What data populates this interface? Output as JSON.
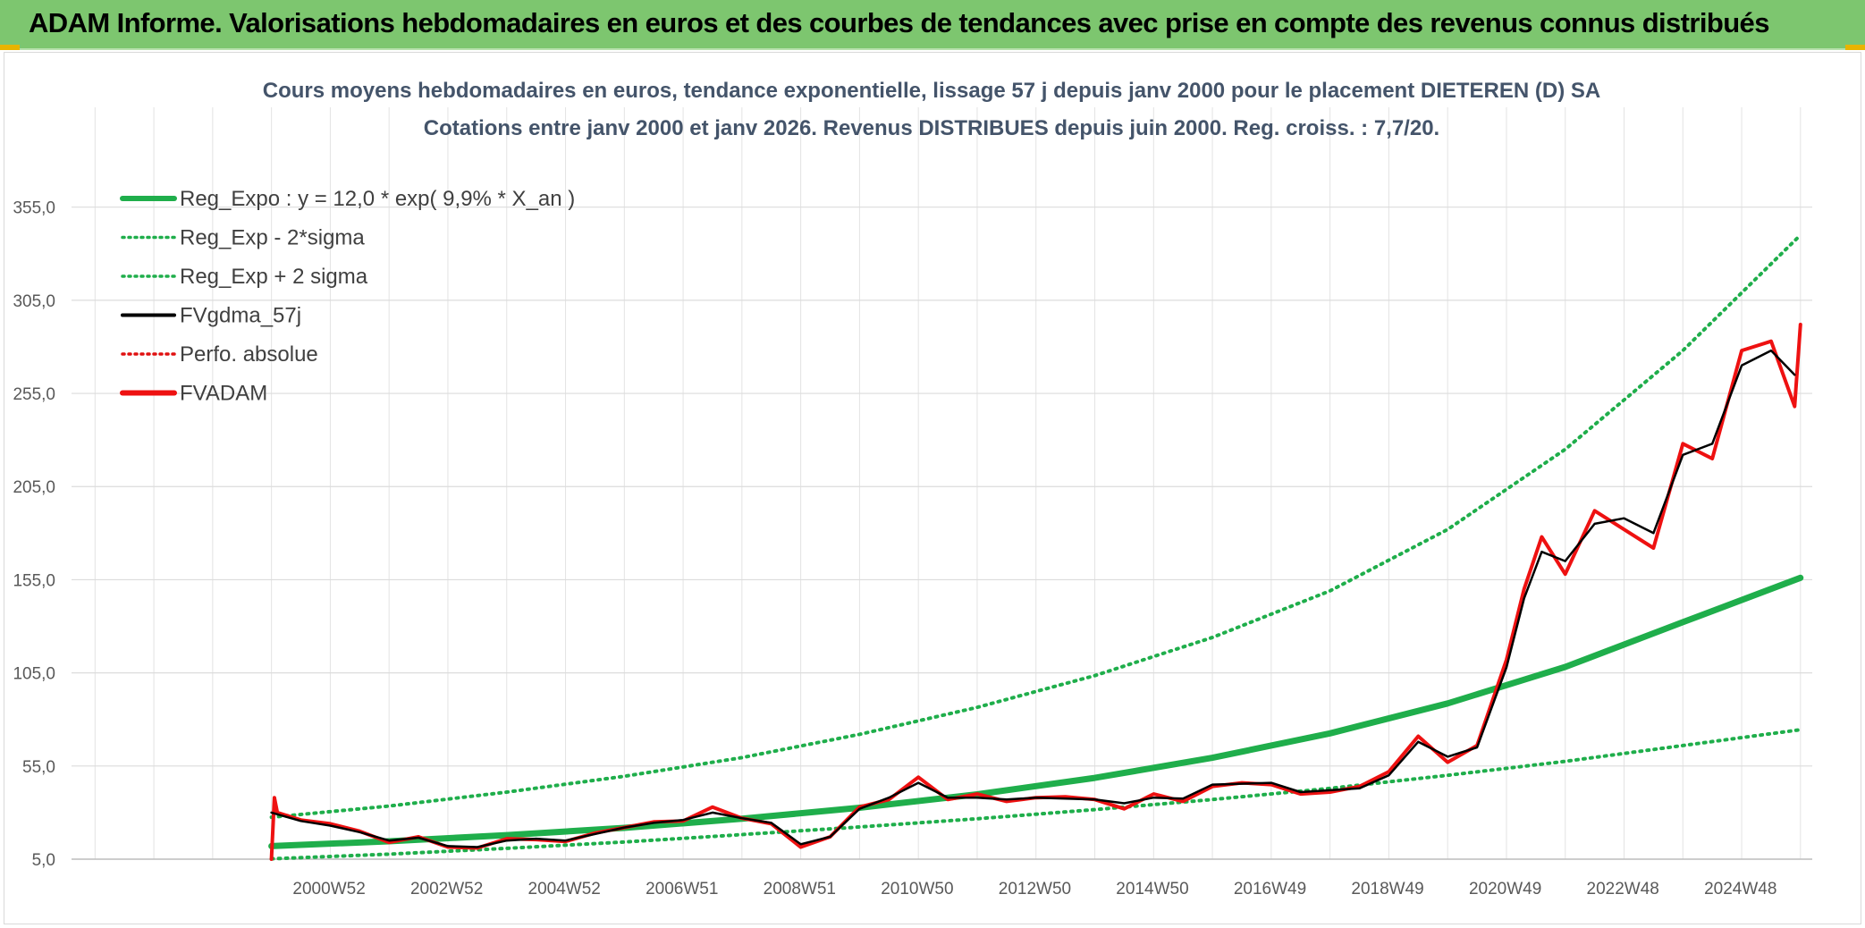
{
  "banner": {
    "title": "ADAM Informe. Valorisations hebdomadaires en euros et des courbes de tendances avec prise en compte des revenus connus distribués",
    "color": "#7dc66f"
  },
  "chart_data": {
    "type": "line",
    "title": "Cours moyens hebdomadaires en euros, tendance exponentielle, lissage 57 j depuis janv 2000 pour le placement DIETEREN (D) SA",
    "subtitle": "Cotations entre janv 2000 et janv 2026. Revenus DISTRIBUES depuis juin 2000. Reg. croiss. : 7,7/20.",
    "ylim": [
      5,
      375
    ],
    "xlim": [
      1996.6,
      2026.2
    ],
    "y_ticks": [
      "355,0",
      "305,0",
      "255,0",
      "205,0",
      "155,0",
      "105,0",
      "55,0",
      "5,0"
    ],
    "y_tick_values": [
      355,
      305,
      255,
      205,
      155,
      105,
      55,
      5
    ],
    "x_ticks": [
      "2000W52",
      "2002W52",
      "2004W52",
      "2006W51",
      "2008W51",
      "2010W50",
      "2012W50",
      "2014W50",
      "2016W49",
      "2018W49",
      "2020W49",
      "2022W48",
      "2024W48"
    ],
    "x_tick_years": [
      2000.98,
      2002.98,
      2004.98,
      2006.98,
      2008.98,
      2010.98,
      2012.98,
      2014.98,
      2016.98,
      2018.98,
      2020.98,
      2022.98,
      2024.98
    ],
    "legend": [
      {
        "label": "Reg_Expo : y = 12,0 * exp( 9,9% *  X_an )",
        "color": "#1fae4b",
        "style": "solid-thick"
      },
      {
        "label": "Reg_Exp - 2*sigma",
        "color": "#1fae4b",
        "style": "dotted"
      },
      {
        "label": "Reg_Exp + 2 sigma",
        "color": "#1fae4b",
        "style": "dotted"
      },
      {
        "label": "FVgdma_57j",
        "color": "#000000",
        "style": "solid"
      },
      {
        "label": "Perfo. absolue",
        "color": "#e01010",
        "style": "dotted"
      },
      {
        "label": "FVADAM",
        "color": "#ee1111",
        "style": "solid-thick"
      }
    ],
    "series": [
      {
        "name": "Reg_Expo",
        "color": "#1fae4b",
        "x": [
          2000.0,
          2002.0,
          2004.0,
          2006.0,
          2008.0,
          2010.0,
          2012.0,
          2014.0,
          2016.0,
          2018.0,
          2020.0,
          2022.0,
          2024.0,
          2026.0
        ],
        "y": [
          12.0,
          14.6,
          17.9,
          21.8,
          26.7,
          32.6,
          39.8,
          48.6,
          59.4,
          72.5,
          88.6,
          108.2,
          132.2,
          156.0
        ]
      },
      {
        "name": "Reg_Exp - 2*sigma",
        "color": "#1fae4b",
        "x": [
          2000.0,
          2002.0,
          2004.0,
          2006.0,
          2008.0,
          2010.0,
          2012.0,
          2014.0,
          2016.0,
          2018.0,
          2020.0,
          2022.0,
          2024.0,
          2026.0
        ],
        "y": [
          5.2,
          7.7,
          10.8,
          14.2,
          18.2,
          22.3,
          26.7,
          31.6,
          37.0,
          43.0,
          50.0,
          57.5,
          66.0,
          74.5
        ]
      },
      {
        "name": "Reg_Exp + 2 sigma",
        "color": "#1fae4b",
        "x": [
          2000.0,
          2002.0,
          2004.0,
          2006.0,
          2008.0,
          2010.0,
          2012.0,
          2014.0,
          2016.0,
          2018.0,
          2020.0,
          2022.0,
          2024.0,
          2026.0
        ],
        "y": [
          27.5,
          33.5,
          41.0,
          49.5,
          59.5,
          72.0,
          86.5,
          103.5,
          124.0,
          149.0,
          182.0,
          225.0,
          278.0,
          340.0
        ]
      },
      {
        "name": "FVgdma_57j",
        "color": "#000000",
        "x": [
          2000.0,
          2000.5,
          2001.0,
          2001.5,
          2002.0,
          2002.5,
          2003.0,
          2003.5,
          2004.0,
          2004.5,
          2005.0,
          2005.5,
          2006.0,
          2006.5,
          2007.0,
          2007.5,
          2008.0,
          2008.5,
          2009.0,
          2009.5,
          2010.0,
          2010.5,
          2011.0,
          2011.5,
          2012.0,
          2012.5,
          2013.0,
          2013.5,
          2014.0,
          2014.5,
          2015.0,
          2015.5,
          2016.0,
          2016.5,
          2017.0,
          2017.5,
          2018.0,
          2018.5,
          2019.0,
          2019.5,
          2020.0,
          2020.5,
          2021.0,
          2021.3,
          2021.6,
          2022.0,
          2022.5,
          2023.0,
          2023.5,
          2024.0,
          2024.5,
          2025.0,
          2025.5,
          2025.9
        ],
        "y": [
          30.0,
          25.5,
          23.0,
          19.5,
          15.0,
          16.5,
          12.0,
          11.5,
          15.0,
          16.0,
          15.0,
          18.5,
          22.0,
          24.5,
          26.0,
          30.0,
          27.0,
          24.5,
          13.0,
          17.0,
          32.0,
          38.0,
          46.0,
          38.0,
          38.0,
          37.0,
          38.0,
          37.5,
          37.0,
          35.0,
          38.0,
          37.5,
          45.0,
          45.5,
          46.0,
          41.0,
          42.0,
          43.0,
          50.0,
          68.0,
          60.0,
          65.0,
          108.0,
          145.0,
          170.0,
          165.0,
          185.0,
          188.0,
          180.0,
          222.0,
          228.0,
          270.0,
          278.0,
          265.0
        ]
      },
      {
        "name": "FVADAM",
        "color": "#ee1111",
        "x": [
          2000.0,
          2000.05,
          2000.1,
          2000.5,
          2001.0,
          2001.5,
          2002.0,
          2002.5,
          2003.0,
          2003.5,
          2004.0,
          2004.5,
          2005.0,
          2005.5,
          2006.0,
          2006.5,
          2007.0,
          2007.5,
          2008.0,
          2008.5,
          2009.0,
          2009.5,
          2010.0,
          2010.5,
          2011.0,
          2011.5,
          2012.0,
          2012.5,
          2013.0,
          2013.5,
          2014.0,
          2014.5,
          2015.0,
          2015.5,
          2016.0,
          2016.5,
          2017.0,
          2017.5,
          2018.0,
          2018.5,
          2019.0,
          2019.5,
          2020.0,
          2020.5,
          2021.0,
          2021.3,
          2021.6,
          2022.0,
          2022.5,
          2023.0,
          2023.5,
          2024.0,
          2024.5,
          2025.0,
          2025.5,
          2025.9,
          2026.0
        ],
        "y": [
          5.0,
          38.0,
          30.0,
          26.0,
          24.0,
          20.0,
          14.0,
          17.0,
          11.5,
          11.0,
          16.0,
          15.5,
          14.5,
          19.0,
          22.0,
          25.0,
          25.5,
          33.0,
          27.0,
          24.0,
          11.5,
          17.0,
          33.0,
          37.0,
          49.0,
          37.0,
          40.0,
          36.0,
          38.0,
          38.5,
          37.0,
          32.0,
          40.0,
          36.0,
          44.0,
          46.0,
          45.0,
          40.0,
          41.0,
          44.0,
          52.0,
          71.0,
          57.0,
          66.0,
          112.0,
          150.0,
          178.0,
          158.0,
          192.0,
          182.0,
          172.0,
          228.0,
          220.0,
          278.0,
          283.0,
          248.0,
          292.0
        ]
      }
    ]
  }
}
